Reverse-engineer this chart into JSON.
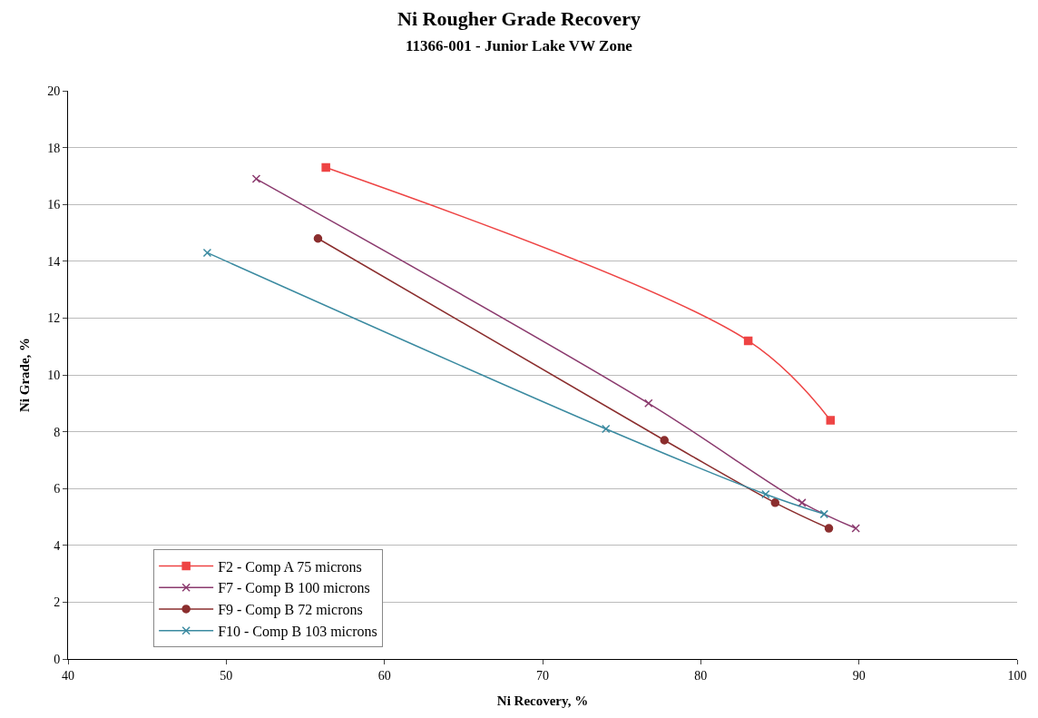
{
  "chart_data": {
    "type": "line",
    "title": "Ni Rougher Grade Recovery",
    "subtitle": "11366-001 - Junior Lake VW Zone",
    "xlabel": "Ni Recovery, %",
    "ylabel": "Ni Grade, %",
    "xlim": [
      40,
      100
    ],
    "xticks": [
      40,
      50,
      60,
      70,
      80,
      90,
      100
    ],
    "ylim": [
      0,
      20
    ],
    "yticks": [
      0,
      2,
      4,
      6,
      8,
      10,
      12,
      14,
      16,
      18,
      20
    ],
    "grid": "y",
    "legend": "bottom left",
    "series": [
      {
        "name": "F2 - Comp A 75 microns",
        "color": "#ee4444",
        "marker": "square",
        "x": [
          56.3,
          83.0,
          88.2
        ],
        "values": [
          17.3,
          11.2,
          8.4
        ]
      },
      {
        "name": "F7 - Comp B 100 microns",
        "color": "#8b3a6e",
        "marker": "cross",
        "x": [
          51.9,
          76.7,
          86.4,
          89.8
        ],
        "values": [
          16.9,
          9.0,
          5.5,
          4.6
        ]
      },
      {
        "name": "F9 - Comp B 72 microns",
        "color": "#8b2e2e",
        "marker": "circle",
        "x": [
          55.8,
          77.7,
          84.7,
          88.1
        ],
        "values": [
          14.8,
          7.7,
          5.5,
          4.6
        ]
      },
      {
        "name": "F10 - Comp B 103 microns",
        "color": "#3a8aa0",
        "marker": "cross",
        "x": [
          48.8,
          74.0,
          84.1,
          87.8
        ],
        "values": [
          14.3,
          8.1,
          5.8,
          5.1
        ]
      }
    ]
  }
}
